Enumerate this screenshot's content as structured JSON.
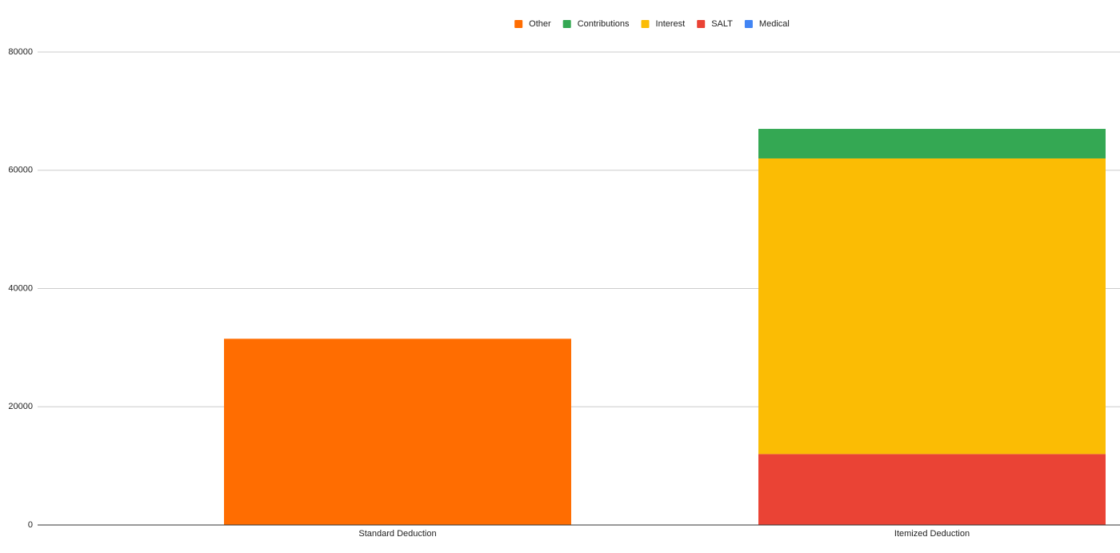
{
  "chart_data": {
    "type": "stacked-bar",
    "categories": [
      "Standard Deduction",
      "Itemized Deduction"
    ],
    "series": [
      {
        "name": "Other",
        "color": "#ff6d01",
        "values": [
          31500,
          0
        ]
      },
      {
        "name": "Contributions",
        "color": "#34a853",
        "values": [
          0,
          5000
        ]
      },
      {
        "name": "Interest",
        "color": "#fbbc04",
        "values": [
          0,
          50000
        ]
      },
      {
        "name": "SALT",
        "color": "#ea4335",
        "values": [
          0,
          12000
        ]
      },
      {
        "name": "Medical",
        "color": "#4285f4",
        "values": [
          0,
          0
        ]
      }
    ],
    "ylim": [
      0,
      80000
    ],
    "yticks": [
      0,
      20000,
      40000,
      60000,
      80000
    ],
    "grid": true,
    "legend": "top"
  }
}
